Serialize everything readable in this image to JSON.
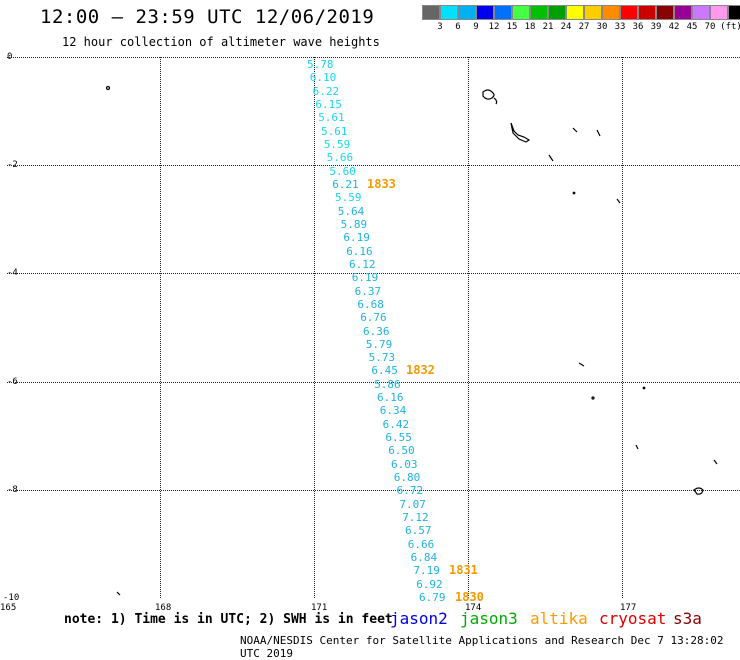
{
  "title": "12:00 – 23:59 UTC 12/06/2019",
  "subtitle": "12 hour collection of altimeter wave heights",
  "legend": {
    "colors": [
      "#666666",
      "#00e0ff",
      "#00b0f0",
      "#0000ee",
      "#0070ff",
      "#44ff44",
      "#00c000",
      "#00a000",
      "#ffff00",
      "#ffcc00",
      "#ff8c00",
      "#ff0000",
      "#cc0000",
      "#880000",
      "#990099",
      "#cc77ff",
      "#ff99ee",
      "#000000"
    ],
    "labels": [
      "3",
      "6",
      "9",
      "12",
      "15",
      "18",
      "21",
      "24",
      "27",
      "30",
      "33",
      "36",
      "39",
      "42",
      "45",
      "70",
      "(ft)"
    ]
  },
  "axes": {
    "y_labels": [
      "0",
      "-2",
      "-4",
      "-6",
      "-8",
      "-10"
    ],
    "x_labels": [
      "165",
      "168",
      "171",
      "174",
      "177"
    ]
  },
  "wave_heights": [
    "5.78",
    "6.10",
    "6.22",
    "6.15",
    "5.61",
    "5.61",
    "5.59",
    "5.66",
    "5.60",
    "6.21",
    "5.59",
    "5.64",
    "5.89",
    "6.19",
    "6.16",
    "6.12",
    "6.19",
    "6.37",
    "6.68",
    "6.76",
    "6.36",
    "5.79",
    "5.73",
    "6.45",
    "5.86",
    "6.16",
    "6.34",
    "6.42",
    "6.55",
    "6.50",
    "6.03",
    "6.80",
    "6.72",
    "7.07",
    "7.12",
    "6.57",
    "6.66",
    "6.84",
    "7.19",
    "6.92",
    "6.79"
  ],
  "track_times": [
    "1833",
    "1832",
    "1831",
    "1830"
  ],
  "note": "note: 1) Time is in UTC; 2) SWH is in feet",
  "satellites": [
    {
      "name": "jason2",
      "color": "#0000dd"
    },
    {
      "name": "jason3",
      "color": "#00aa00"
    },
    {
      "name": "altika",
      "color": "#ff9900"
    },
    {
      "name": "cryosat",
      "color": "#dd0000"
    },
    {
      "name": "s3a",
      "color": "#880000"
    }
  ],
  "credit": "NOAA/NESDIS Center for Satellite Applications and Research   Dec  7 13:28:02 UTC 2019"
}
